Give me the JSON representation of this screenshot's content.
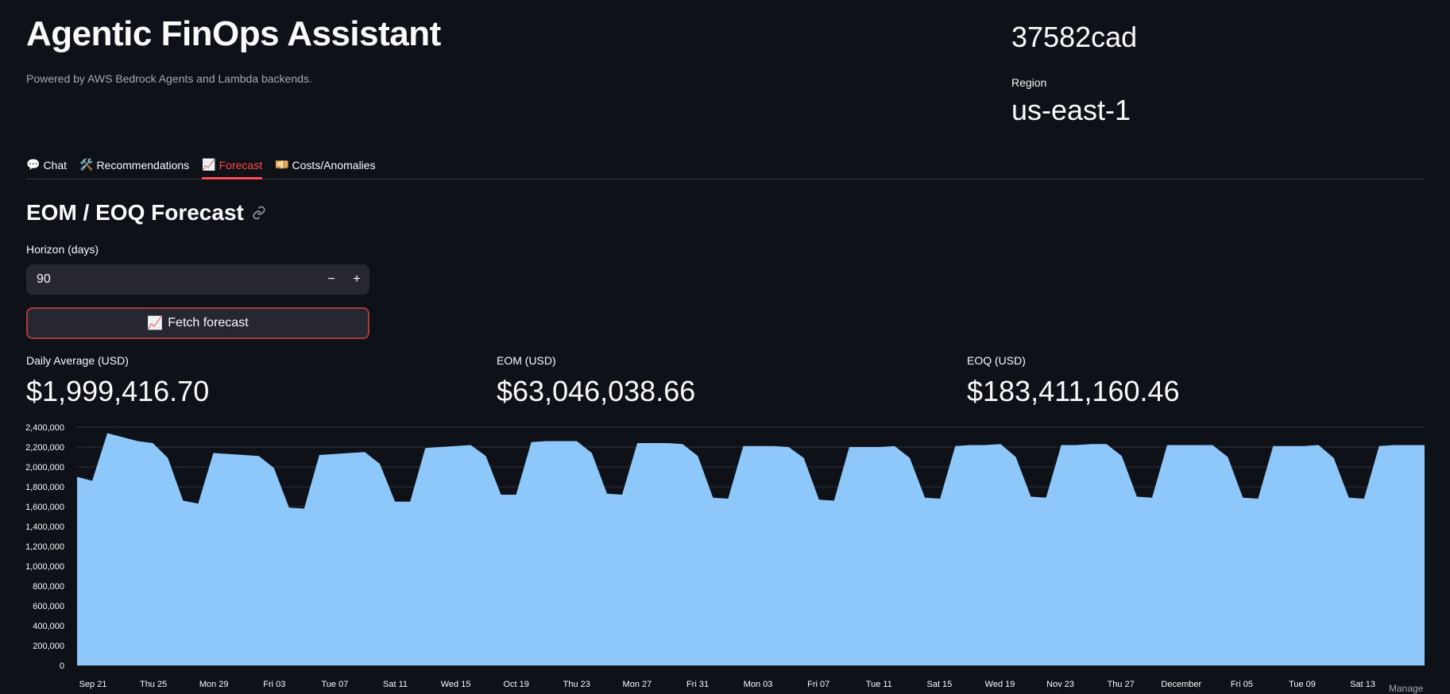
{
  "header": {
    "title": "Agentic FinOps Assistant",
    "subtitle": "Powered by AWS Bedrock Agents and Lambda backends.",
    "account": "37582cad",
    "region_label": "Region",
    "region_value": "us-east-1"
  },
  "tabs": [
    {
      "icon": "💬",
      "label": "Chat"
    },
    {
      "icon": "🛠️",
      "label": "Recommendations"
    },
    {
      "icon": "📈",
      "label": "Forecast"
    },
    {
      "icon": "💴",
      "label": "Costs/Anomalies"
    }
  ],
  "forecast": {
    "section_title": "EOM / EOQ Forecast",
    "horizon_label": "Horizon (days)",
    "horizon_value": "90",
    "minus": "−",
    "plus": "+",
    "fetch_icon": "📈",
    "fetch_label": "Fetch forecast",
    "metrics": [
      {
        "label": "Daily Average (USD)",
        "value": "$1,999,416.70"
      },
      {
        "label": "EOM (USD)",
        "value": "$63,046,038.66"
      },
      {
        "label": "EOQ (USD)",
        "value": "$183,411,160.46"
      }
    ]
  },
  "footer": {
    "manage": "Manage"
  },
  "colors": {
    "accent": "#ff4b4b",
    "area": "#8ec8fb",
    "bg": "#0e1117"
  },
  "chart_data": {
    "type": "area",
    "title": "",
    "xlabel": "",
    "ylabel": "",
    "ylim": [
      0,
      2400000
    ],
    "y_ticks": [
      "0",
      "200,000",
      "400,000",
      "600,000",
      "800,000",
      "1,000,000",
      "1,200,000",
      "1,400,000",
      "1,600,000",
      "1,800,000",
      "2,000,000",
      "2,200,000",
      "2,400,000"
    ],
    "x_tick_labels": [
      "Sep 21",
      "Thu 25",
      "Mon 29",
      "Fri 03",
      "Tue 07",
      "Sat 11",
      "Wed 15",
      "Oct 19",
      "Thu 23",
      "Mon 27",
      "Fri 31",
      "Mon 03",
      "Fri 07",
      "Tue 11",
      "Sat 15",
      "Wed 19",
      "Nov 23",
      "Thu 27",
      "December",
      "Fri 05",
      "Tue 09",
      "Sat 13"
    ],
    "series": [
      {
        "name": "forecast",
        "values": [
          1900000,
          1860000,
          2340000,
          2300000,
          2260000,
          2240000,
          2090000,
          1660000,
          1630000,
          2140000,
          2130000,
          2120000,
          2110000,
          1990000,
          1590000,
          1580000,
          2120000,
          2130000,
          2140000,
          2150000,
          2030000,
          1650000,
          1650000,
          2190000,
          2200000,
          2210000,
          2220000,
          2110000,
          1720000,
          1720000,
          2250000,
          2260000,
          2260000,
          2260000,
          2140000,
          1730000,
          1720000,
          2240000,
          2240000,
          2240000,
          2230000,
          2110000,
          1690000,
          1680000,
          2210000,
          2210000,
          2210000,
          2200000,
          2090000,
          1670000,
          1660000,
          2200000,
          2200000,
          2200000,
          2210000,
          2090000,
          1690000,
          1680000,
          2210000,
          2220000,
          2220000,
          2230000,
          2100000,
          1700000,
          1690000,
          2220000,
          2220000,
          2230000,
          2230000,
          2110000,
          1700000,
          1690000,
          2220000,
          2220000,
          2220000,
          2220000,
          2100000,
          1690000,
          1680000,
          2210000,
          2210000,
          2210000,
          2220000,
          2090000,
          1690000,
          1680000,
          2210000,
          2220000,
          2220000,
          2220000
        ]
      }
    ]
  }
}
